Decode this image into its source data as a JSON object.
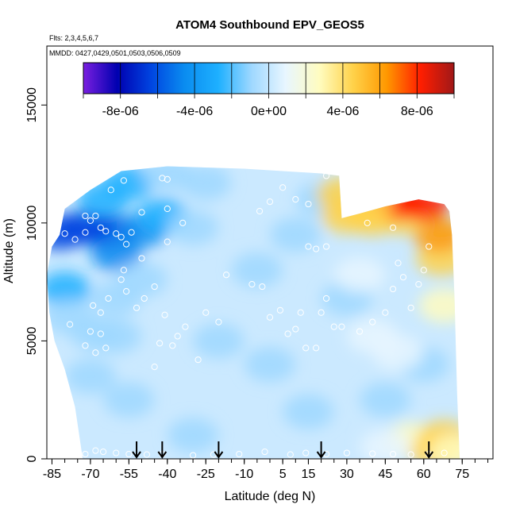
{
  "chart_data": {
    "type": "heatmap",
    "title": "ATOM4 Southbound EPV_GEOS5",
    "annotations": [
      "Flts: 2,3,4,5,6,7",
      "MMDD: 0427,0429,0501,0503,0506,0509"
    ],
    "xlabel": "Latitude (deg N)",
    "ylabel": "Altitude (m)",
    "xlim": [
      -87,
      87
    ],
    "ylim": [
      0,
      17500
    ],
    "x_ticks": [
      -85,
      -70,
      -55,
      -40,
      -25,
      -10,
      5,
      15,
      30,
      45,
      60,
      75
    ],
    "x_ticks_minor_step": 5,
    "y_ticks": [
      0,
      5000,
      10000,
      15000
    ],
    "colorbar": {
      "min": -1e-05,
      "max": 1e-05,
      "tick_values": [
        -8e-06,
        -4e-06,
        0,
        4e-06,
        8e-06
      ],
      "tick_labels": [
        "-8e-06",
        "-4e-06",
        "0e+00",
        "4e-06",
        "8e-06"
      ],
      "colors": [
        "#7a1fe0",
        "#0000b0",
        "#0044e0",
        "#0a8cf0",
        "#1eb0ff",
        "#9fd8ff",
        "#e8f6ff",
        "#fffcc0",
        "#ffd24a",
        "#ff9800",
        "#ff1e00",
        "#a01818"
      ],
      "divisions": [
        -1e-05,
        -8e-06,
        -6e-06,
        -4e-06,
        -2e-06,
        0,
        2e-06,
        4e-06,
        6e-06,
        8e-06,
        1e-05
      ]
    },
    "curtain_top_profile": [
      [
        -80,
        10600
      ],
      [
        -75,
        11000
      ],
      [
        -70,
        11400
      ],
      [
        -64,
        11800
      ],
      [
        -58,
        12200
      ],
      [
        -40,
        12400
      ],
      [
        -10,
        12300
      ],
      [
        20,
        12100
      ],
      [
        27,
        12000
      ],
      [
        28,
        10200
      ],
      [
        35,
        10400
      ],
      [
        45,
        10700
      ],
      [
        58,
        11000
      ],
      [
        68,
        10800
      ],
      [
        70,
        10500
      ],
      [
        71,
        9500
      ],
      [
        72,
        6800
      ],
      [
        73,
        2800
      ],
      [
        74,
        0
      ]
    ],
    "curtain_bottom_left_profile": [
      [
        -82,
        9500
      ],
      [
        -85,
        9000
      ],
      [
        -87,
        7800
      ],
      [
        -86,
        6200
      ],
      [
        -84,
        5000
      ],
      [
        -80,
        3800
      ],
      [
        -76,
        2200
      ],
      [
        -73,
        0
      ]
    ],
    "epv_samples": [
      {
        "lat": -82,
        "alt": 9600,
        "epv": -7e-06
      },
      {
        "lat": -72,
        "alt": 9800,
        "epv": -8e-06
      },
      {
        "lat": -62,
        "alt": 9600,
        "epv": -7e-06
      },
      {
        "lat": -60,
        "alt": 8700,
        "epv": -6e-06
      },
      {
        "lat": -50,
        "alt": 9700,
        "epv": -5e-06
      },
      {
        "lat": -42,
        "alt": 10300,
        "epv": -4e-06
      },
      {
        "lat": -65,
        "alt": 11000,
        "epv": -3e-06
      },
      {
        "lat": -55,
        "alt": 11700,
        "epv": -3e-06
      },
      {
        "lat": -40,
        "alt": 12100,
        "epv": -2e-06
      },
      {
        "lat": -25,
        "alt": 11700,
        "epv": -1e-06
      },
      {
        "lat": -30,
        "alt": 9800,
        "epv": -1e-06
      },
      {
        "lat": -80,
        "alt": 7200,
        "epv": -3e-06
      },
      {
        "lat": -78,
        "alt": 6000,
        "epv": -2e-06
      },
      {
        "lat": -68,
        "alt": 5300,
        "epv": -2e-06
      },
      {
        "lat": -60,
        "alt": 6800,
        "epv": -2e-06
      },
      {
        "lat": -50,
        "alt": 7600,
        "epv": -1e-06
      },
      {
        "lat": -60,
        "alt": 5200,
        "epv": -1e-06
      },
      {
        "lat": -70,
        "alt": 3500,
        "epv": -1e-06
      },
      {
        "lat": -55,
        "alt": 2500,
        "epv": -1e-06
      },
      {
        "lat": -20,
        "alt": 5000,
        "epv": -1e-06
      },
      {
        "lat": -5,
        "alt": 8000,
        "epv": -1e-06
      },
      {
        "lat": 10,
        "alt": 9500,
        "epv": -1e-06
      },
      {
        "lat": 20,
        "alt": 11000,
        "epv": -1e-06
      },
      {
        "lat": 0,
        "alt": 4000,
        "epv": -1e-06
      },
      {
        "lat": 15,
        "alt": 2000,
        "epv": -1e-06
      },
      {
        "lat": 45,
        "alt": 2500,
        "epv": -1e-06
      },
      {
        "lat": 60,
        "alt": 4000,
        "epv": -1e-06
      },
      {
        "lat": -30,
        "alt": 1000,
        "epv": -1e-06
      },
      {
        "lat": 30,
        "alt": 6800,
        "epv": -1e-06
      },
      {
        "lat": 40,
        "alt": 5200,
        "epv": 0
      },
      {
        "lat": 50,
        "alt": 4500,
        "epv": 0
      },
      {
        "lat": 35,
        "alt": 7800,
        "epv": 0
      },
      {
        "lat": 68,
        "alt": 6500,
        "epv": 3e-06
      },
      {
        "lat": 67,
        "alt": 8500,
        "epv": 5e-06
      },
      {
        "lat": 66,
        "alt": 9500,
        "epv": 6e-06
      },
      {
        "lat": 28,
        "alt": 11200,
        "epv": 5e-06
      },
      {
        "lat": 30,
        "alt": 10300,
        "epv": 4e-06
      },
      {
        "lat": 40,
        "alt": 10200,
        "epv": 4e-06
      },
      {
        "lat": 52,
        "alt": 10250,
        "epv": 5e-06
      },
      {
        "lat": 60,
        "alt": 10800,
        "epv": 9e-06
      },
      {
        "lat": 50,
        "alt": 10900,
        "epv": 8e-06
      },
      {
        "lat": 38,
        "alt": 10700,
        "epv": 5e-06
      },
      {
        "lat": 55,
        "alt": 800,
        "epv": 2e-06
      },
      {
        "lat": 65,
        "alt": 300,
        "epv": 5e-06
      },
      {
        "lat": 68,
        "alt": 900,
        "epv": 4e-06
      },
      {
        "lat": 45,
        "alt": 500,
        "epv": 0
      },
      {
        "lat": 72,
        "alt": 300,
        "epv": 3e-06
      }
    ],
    "flight_points": [
      [
        -80,
        9550
      ],
      [
        -76,
        9300
      ],
      [
        -72,
        9600
      ],
      [
        -68,
        10300
      ],
      [
        -66,
        9800
      ],
      [
        -64,
        9650
      ],
      [
        -60,
        9550
      ],
      [
        -58,
        9400
      ],
      [
        -56,
        9100
      ],
      [
        -54,
        9600
      ],
      [
        -70,
        10100
      ],
      [
        -72,
        10300
      ],
      [
        -62,
        11400
      ],
      [
        -57,
        11800
      ],
      [
        -40,
        11850
      ],
      [
        -42,
        11900
      ],
      [
        -50,
        10450
      ],
      [
        -40,
        10600
      ],
      [
        -34,
        10000
      ],
      [
        -69,
        6500
      ],
      [
        -66,
        6200
      ],
      [
        -63,
        6800
      ],
      [
        -70,
        5400
      ],
      [
        -66,
        5300
      ],
      [
        -68,
        4500
      ],
      [
        -64,
        4700
      ],
      [
        -72,
        4800
      ],
      [
        -78,
        5700
      ],
      [
        -58,
        7600
      ],
      [
        -56,
        7100
      ],
      [
        -52,
        6400
      ],
      [
        -49,
        6800
      ],
      [
        -45,
        7300
      ],
      [
        -41,
        6100
      ],
      [
        -36,
        5200
      ],
      [
        -33,
        5600
      ],
      [
        -28,
        4200
      ],
      [
        -38,
        4800
      ],
      [
        -43,
        4900
      ],
      [
        -45,
        3900
      ],
      [
        -57,
        8000
      ],
      [
        -50,
        8500
      ],
      [
        -40,
        9200
      ],
      [
        -17,
        7800
      ],
      [
        -7,
        7400
      ],
      [
        -3,
        7300
      ],
      [
        -25,
        6200
      ],
      [
        -20,
        5800
      ],
      [
        0,
        6000
      ],
      [
        4,
        6300
      ],
      [
        7,
        5300
      ],
      [
        10,
        5500
      ],
      [
        12,
        6200
      ],
      [
        14,
        4700
      ],
      [
        18,
        4700
      ],
      [
        20,
        6200
      ],
      [
        22,
        6800
      ],
      [
        25,
        5600
      ],
      [
        28,
        5600
      ],
      [
        35,
        5400
      ],
      [
        40,
        5800
      ],
      [
        45,
        6200
      ],
      [
        48,
        7200
      ],
      [
        55,
        6400
      ],
      [
        58,
        7400
      ],
      [
        15,
        9000
      ],
      [
        18,
        8900
      ],
      [
        22,
        9000
      ],
      [
        38,
        10000
      ],
      [
        48,
        9800
      ],
      [
        50,
        8300
      ],
      [
        52,
        7700
      ],
      [
        60,
        8000
      ],
      [
        62,
        9000
      ],
      [
        -4,
        10500
      ],
      [
        0,
        10900
      ],
      [
        5,
        11500
      ],
      [
        10,
        11000
      ],
      [
        15,
        10800
      ],
      [
        22,
        12000
      ],
      [
        18,
        12400
      ],
      [
        -72,
        200
      ],
      [
        -68,
        350
      ],
      [
        -65,
        300
      ],
      [
        -60,
        250
      ],
      [
        -55,
        200
      ],
      [
        -48,
        180
      ],
      [
        -42,
        200
      ],
      [
        -30,
        150
      ],
      [
        -22,
        180
      ],
      [
        -12,
        200
      ],
      [
        -2,
        300
      ],
      [
        8,
        180
      ],
      [
        14,
        250
      ],
      [
        22,
        200
      ],
      [
        30,
        250
      ],
      [
        40,
        220
      ],
      [
        48,
        200
      ],
      [
        55,
        180
      ],
      [
        62,
        200
      ],
      [
        68,
        250
      ]
    ],
    "arrows_lat": [
      -52,
      -42,
      -20,
      20,
      62
    ]
  }
}
